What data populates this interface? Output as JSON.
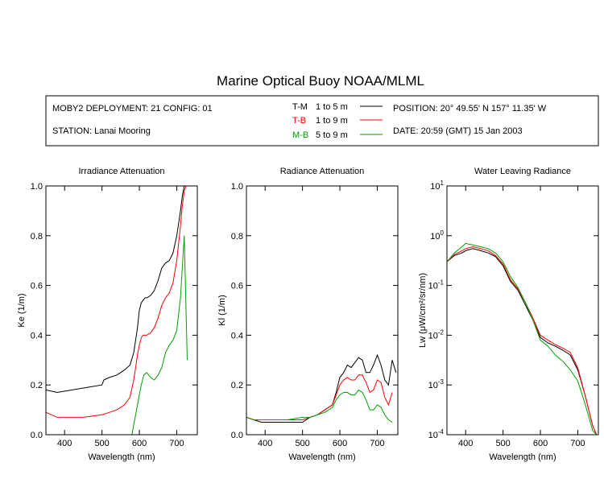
{
  "title": "Marine Optical Buoy NOAA/MLML",
  "info": {
    "deployment": "MOBY2 DEPLOYMENT: 21 CONFIG: 01",
    "station": "STATION: Lanai Mooring",
    "position": "POSITION: 20° 49.55' N   157° 11.35' W",
    "date": "DATE: 20:59 (GMT) 15 Jan 2003"
  },
  "legend": [
    {
      "code": "T-M",
      "range": "1 to 5  m",
      "color": "#000000"
    },
    {
      "code": "T-B",
      "range": "1 to 9  m",
      "color": "#ff0000"
    },
    {
      "code": "M-B",
      "range": "5 to 9  m",
      "color": "#00a000"
    }
  ],
  "chart_data": [
    {
      "type": "line",
      "title": "Irradiance Attenuation",
      "xlabel": "Wavelength (nm)",
      "ylabel": "Ke  (1/m)",
      "xlim": [
        350,
        755
      ],
      "ylim": [
        0,
        1
      ],
      "xticks": [
        400,
        500,
        600,
        700
      ],
      "yticks": [
        0,
        0.2,
        0.4,
        0.6,
        0.8,
        1.0
      ],
      "ytick_labels": [
        "0.0",
        "0.2",
        "0.4",
        "0.6",
        "0.8",
        "1.0"
      ],
      "series": [
        {
          "name": "T-M",
          "color": "#000000",
          "x": [
            350,
            380,
            420,
            460,
            500,
            505,
            520,
            540,
            560,
            575,
            585,
            595,
            600,
            605,
            610,
            615,
            620,
            630,
            640,
            650,
            660,
            670,
            680,
            690,
            700,
            710,
            715,
            720
          ],
          "y": [
            0.18,
            0.17,
            0.18,
            0.19,
            0.2,
            0.22,
            0.23,
            0.24,
            0.26,
            0.28,
            0.33,
            0.43,
            0.5,
            0.53,
            0.54,
            0.55,
            0.55,
            0.56,
            0.58,
            0.62,
            0.67,
            0.69,
            0.7,
            0.73,
            0.8,
            0.9,
            0.96,
            1.0
          ]
        },
        {
          "name": "T-B",
          "color": "#ff0000",
          "x": [
            350,
            380,
            400,
            450,
            500,
            520,
            540,
            560,
            575,
            585,
            595,
            600,
            605,
            610,
            620,
            630,
            640,
            650,
            660,
            670,
            680,
            690,
            700,
            710,
            715,
            720,
            725
          ],
          "y": [
            0.09,
            0.07,
            0.07,
            0.07,
            0.08,
            0.09,
            0.1,
            0.12,
            0.15,
            0.22,
            0.32,
            0.36,
            0.39,
            0.4,
            0.4,
            0.41,
            0.43,
            0.47,
            0.52,
            0.55,
            0.57,
            0.61,
            0.7,
            0.84,
            0.92,
            0.98,
            1.0
          ]
        },
        {
          "name": "M-B",
          "color": "#00a000",
          "x": [
            350,
            360,
            580,
            590,
            600,
            605,
            612,
            620,
            630,
            640,
            650,
            660,
            670,
            680,
            690,
            700,
            710,
            720,
            728
          ],
          "y": [
            0.0,
            0.0,
            0.0,
            0.08,
            0.16,
            0.2,
            0.24,
            0.25,
            0.23,
            0.22,
            0.24,
            0.27,
            0.33,
            0.36,
            0.38,
            0.42,
            0.55,
            0.8,
            0.3
          ]
        }
      ]
    },
    {
      "type": "line",
      "title": "Radiance Attenuation",
      "xlabel": "Wavelength (nm)",
      "ylabel": "Kl  (1/m)",
      "xlim": [
        350,
        755
      ],
      "ylim": [
        0,
        1
      ],
      "xticks": [
        400,
        500,
        600,
        700
      ],
      "yticks": [
        0,
        0.2,
        0.4,
        0.6,
        0.8,
        1.0
      ],
      "ytick_labels": [
        "0.0",
        "0.2",
        "0.4",
        "0.6",
        "0.8",
        "1.0"
      ],
      "series": [
        {
          "name": "T-M",
          "color": "#000000",
          "x": [
            350,
            370,
            390,
            420,
            460,
            500,
            520,
            540,
            560,
            580,
            590,
            600,
            610,
            620,
            630,
            640,
            650,
            660,
            670,
            680,
            690,
            700,
            710,
            720,
            730,
            740,
            750
          ],
          "y": [
            0.07,
            0.06,
            0.05,
            0.05,
            0.05,
            0.05,
            0.07,
            0.08,
            0.1,
            0.12,
            0.17,
            0.23,
            0.25,
            0.28,
            0.27,
            0.29,
            0.31,
            0.3,
            0.25,
            0.25,
            0.28,
            0.32,
            0.28,
            0.22,
            0.2,
            0.3,
            0.25
          ]
        },
        {
          "name": "T-B",
          "color": "#ff0000",
          "x": [
            350,
            370,
            390,
            420,
            460,
            500,
            520,
            540,
            560,
            580,
            590,
            600,
            610,
            620,
            630,
            640,
            650,
            660,
            670,
            680,
            690,
            700,
            710,
            720,
            730,
            740
          ],
          "y": [
            0.07,
            0.06,
            0.06,
            0.06,
            0.06,
            0.06,
            0.07,
            0.08,
            0.1,
            0.12,
            0.16,
            0.2,
            0.22,
            0.23,
            0.22,
            0.22,
            0.24,
            0.24,
            0.21,
            0.17,
            0.18,
            0.22,
            0.21,
            0.15,
            0.12,
            0.17
          ]
        },
        {
          "name": "M-B",
          "color": "#00a000",
          "x": [
            350,
            370,
            390,
            420,
            460,
            500,
            520,
            540,
            560,
            580,
            590,
            600,
            610,
            620,
            630,
            640,
            650,
            660,
            670,
            680,
            690,
            700,
            710,
            720,
            730,
            740
          ],
          "y": [
            0.07,
            0.06,
            0.06,
            0.06,
            0.06,
            0.07,
            0.07,
            0.08,
            0.09,
            0.11,
            0.14,
            0.16,
            0.17,
            0.17,
            0.16,
            0.16,
            0.18,
            0.17,
            0.14,
            0.1,
            0.1,
            0.12,
            0.11,
            0.08,
            0.06,
            0.05
          ]
        }
      ]
    },
    {
      "type": "line",
      "title": "Water Leaving Radiance",
      "xlabel": "Wavelength (nm)",
      "ylabel": "Lw  (μW/cm²/sr/nm)",
      "xlim": [
        350,
        755
      ],
      "ylim": [
        0.0001,
        10
      ],
      "yscale": "log",
      "xticks": [
        400,
        500,
        600,
        700
      ],
      "yticks": [
        -4,
        -3,
        -2,
        -1,
        0,
        1
      ],
      "ytick_base": "10",
      "series": [
        {
          "name": "T-M",
          "color": "#000000",
          "x": [
            350,
            370,
            390,
            400,
            420,
            440,
            460,
            480,
            500,
            520,
            540,
            560,
            580,
            600,
            620,
            640,
            660,
            680,
            700,
            720,
            740,
            750
          ],
          "y": [
            0.3,
            0.4,
            0.45,
            0.5,
            0.55,
            0.5,
            0.45,
            0.38,
            0.25,
            0.12,
            0.08,
            0.04,
            0.02,
            0.009,
            0.007,
            0.006,
            0.005,
            0.004,
            0.002,
            0.0006,
            0.00015,
            0.0001
          ]
        },
        {
          "name": "T-B",
          "color": "#ff0000",
          "x": [
            350,
            370,
            390,
            400,
            420,
            440,
            460,
            480,
            500,
            520,
            540,
            560,
            580,
            600,
            620,
            640,
            660,
            680,
            700,
            720,
            740,
            750
          ],
          "y": [
            0.3,
            0.42,
            0.5,
            0.55,
            0.6,
            0.55,
            0.5,
            0.4,
            0.27,
            0.13,
            0.085,
            0.045,
            0.022,
            0.01,
            0.008,
            0.0065,
            0.0055,
            0.0045,
            0.0022,
            0.0006,
            0.00015,
            0.0001
          ]
        },
        {
          "name": "M-B",
          "color": "#00a000",
          "x": [
            350,
            370,
            390,
            400,
            420,
            440,
            460,
            480,
            500,
            520,
            540,
            560,
            580,
            600,
            620,
            640,
            660,
            680,
            700,
            720,
            740,
            750
          ],
          "y": [
            0.3,
            0.45,
            0.6,
            0.7,
            0.65,
            0.6,
            0.55,
            0.45,
            0.3,
            0.15,
            0.09,
            0.045,
            0.02,
            0.008,
            0.006,
            0.004,
            0.003,
            0.002,
            0.0012,
            0.0004,
            0.00012,
            0.0001
          ]
        }
      ]
    }
  ]
}
